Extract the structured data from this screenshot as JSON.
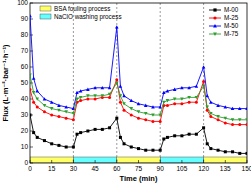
{
  "chart_data": {
    "type": "line",
    "x_label": "Time (min)",
    "y_label": "Flux (L·m⁻²·bar⁻¹·h⁻¹)",
    "x": [
      0,
      2.5,
      5,
      10,
      15,
      20,
      25,
      30,
      32.5,
      35,
      40,
      45,
      50,
      55,
      60,
      62.5,
      65,
      70,
      75,
      80,
      85,
      90,
      92.5,
      95,
      100,
      105,
      110,
      115,
      120,
      122.5,
      125,
      130,
      135,
      140,
      145,
      150
    ],
    "series": [
      {
        "name": "M-00",
        "color": "#000000",
        "marker": "square",
        "values": [
          30,
          19,
          16,
          14,
          12,
          11,
          10,
          10,
          18,
          19,
          20,
          21,
          21,
          22,
          28,
          16,
          12,
          10,
          9,
          8,
          8,
          8,
          15,
          16,
          17,
          17,
          18,
          18,
          22,
          12,
          9,
          8,
          7,
          7,
          6,
          6
        ]
      },
      {
        "name": "M-25",
        "color": "#ff0000",
        "marker": "circle",
        "values": [
          46,
          38,
          35,
          32,
          30,
          29,
          28,
          27,
          38,
          39,
          40,
          40,
          41,
          41,
          52,
          38,
          33,
          30,
          28,
          27,
          26,
          26,
          36,
          36,
          37,
          37,
          38,
          38,
          51,
          33,
          29,
          27,
          25,
          24,
          24,
          24
        ]
      },
      {
        "name": "M-50",
        "color": "#0000ff",
        "marker": "triangle-up",
        "values": [
          92,
          53,
          45,
          40,
          38,
          36,
          35,
          34,
          44,
          45,
          46,
          47,
          47,
          47,
          85,
          48,
          42,
          39,
          37,
          36,
          35,
          35,
          44,
          45,
          46,
          47,
          47,
          48,
          60,
          42,
          38,
          36,
          35,
          34,
          34,
          34
        ]
      },
      {
        "name": "M-75",
        "color": "#2e9e2e",
        "marker": "triangle-down",
        "values": [
          55,
          44,
          40,
          36,
          34,
          33,
          32,
          31,
          40,
          41,
          42,
          42,
          42,
          43,
          50,
          42,
          37,
          34,
          32,
          31,
          30,
          30,
          38,
          39,
          40,
          40,
          41,
          41,
          48,
          35,
          31,
          29,
          28,
          27,
          27,
          27
        ]
      }
    ],
    "processes": [
      {
        "name": "BSA fouling process",
        "color": "#ffff66",
        "intervals": [
          [
            0,
            30
          ],
          [
            60,
            90
          ],
          [
            120,
            150
          ]
        ]
      },
      {
        "name": "NaClO washing process",
        "color": "#66ffff",
        "intervals": [
          [
            30,
            60
          ],
          [
            90,
            120
          ]
        ]
      }
    ],
    "xlim": [
      0,
      150
    ],
    "xticks": [
      0,
      15,
      30,
      45,
      60,
      75,
      90,
      105,
      120,
      135,
      150
    ],
    "ylim": [
      0,
      100
    ],
    "yticks": [
      0,
      10,
      20,
      30,
      40,
      50,
      60,
      70,
      80,
      90,
      100
    ],
    "legend": "upper right",
    "grid": false
  }
}
